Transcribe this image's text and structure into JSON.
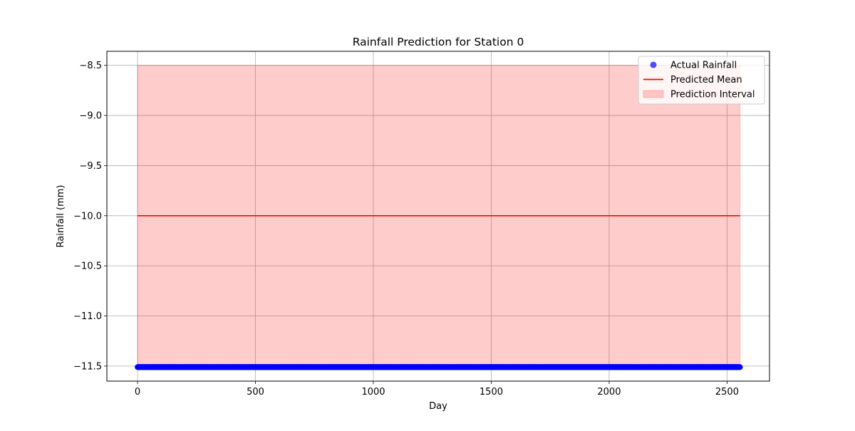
{
  "chart_data": {
    "type": "line",
    "title": "Rainfall Prediction for Station 0",
    "xlabel": "Day",
    "ylabel": "Rainfall (mm)",
    "xlim": [
      -130,
      2680
    ],
    "ylim": [
      -11.65,
      -8.36
    ],
    "xticks": [
      0,
      500,
      1000,
      1500,
      2000,
      2500
    ],
    "xtick_labels": [
      "0",
      "500",
      "1000",
      "1500",
      "2000",
      "2500"
    ],
    "yticks": [
      -8.5,
      -9.0,
      -9.5,
      -10.0,
      -10.5,
      -11.0,
      -11.5
    ],
    "ytick_labels": [
      "−8.5",
      "−9.0",
      "−9.5",
      "−10.0",
      "−10.5",
      "−11.0",
      "−11.5"
    ],
    "grid": true,
    "legend_position": "top-right",
    "day_range": [
      0,
      2555
    ],
    "series": [
      {
        "name": "Actual Rainfall",
        "kind": "scatter",
        "color": "#0000ff",
        "y_constant": -11.51,
        "x_range": [
          0,
          2555
        ]
      },
      {
        "name": "Predicted Mean",
        "kind": "line",
        "color": "#ff0000",
        "points": [
          [
            0,
            -10.0
          ],
          [
            2555,
            -10.0
          ]
        ]
      },
      {
        "name": "Prediction Interval",
        "kind": "band",
        "color": "#ff0000",
        "lower": -11.5,
        "upper": -8.5,
        "x_range": [
          0,
          2555
        ]
      }
    ],
    "legend": {
      "items": [
        {
          "label": "Actual Rainfall",
          "symbol": "dot",
          "color": "#0000ff"
        },
        {
          "label": "Predicted Mean",
          "symbol": "line",
          "color": "#ff0000"
        },
        {
          "label": "Prediction Interval",
          "symbol": "patch",
          "color": "#ff0000"
        }
      ]
    }
  }
}
